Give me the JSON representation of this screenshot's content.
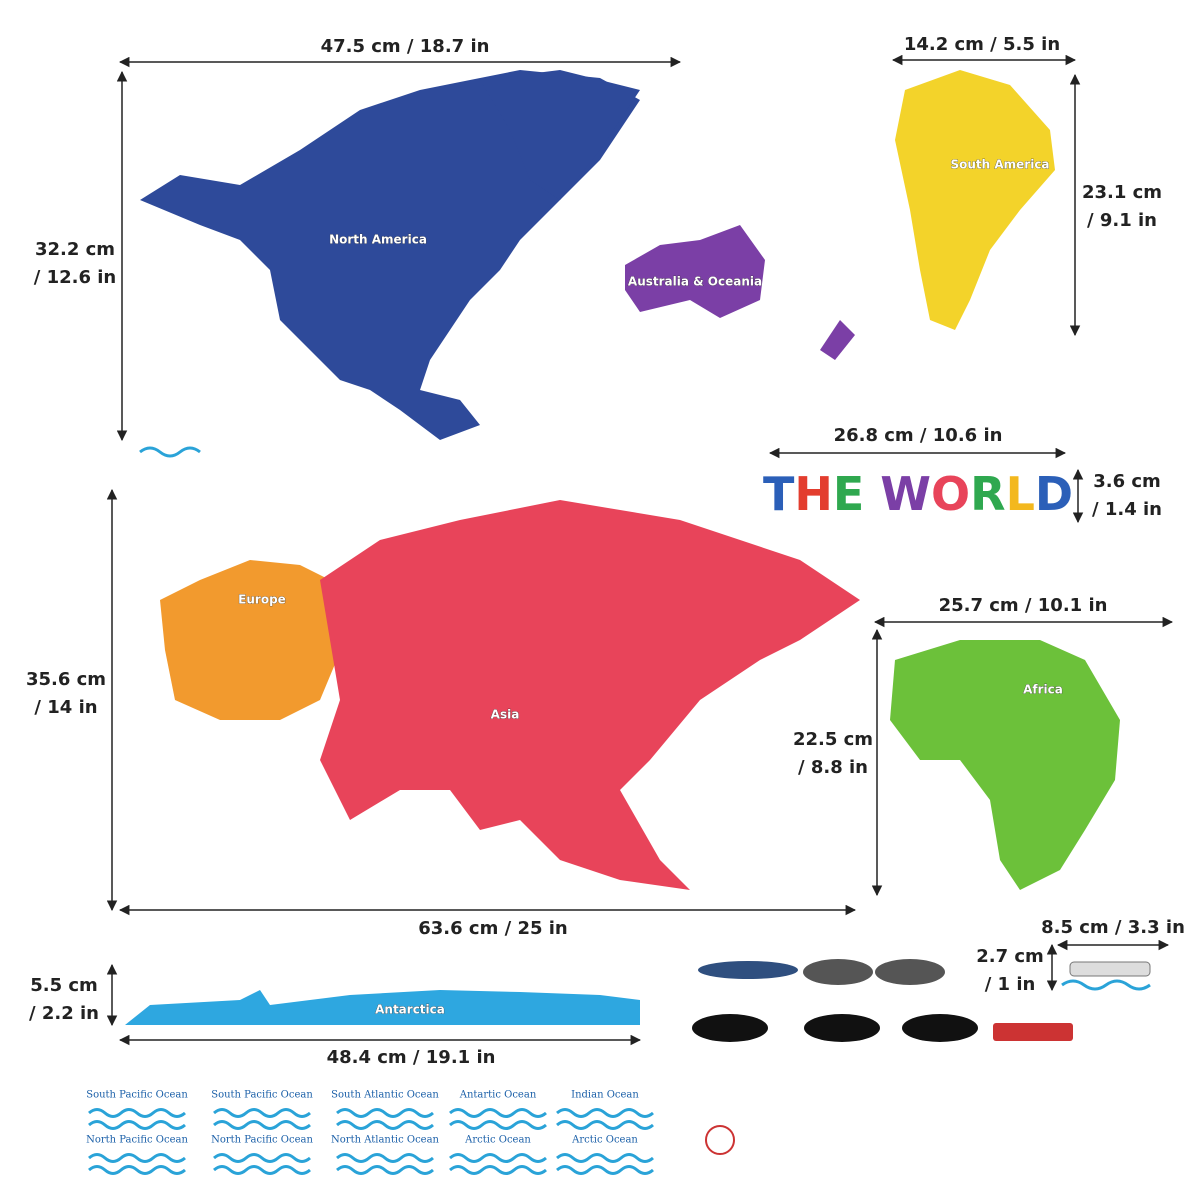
{
  "title": "THE WORLD",
  "dimensions": [
    [
      "47.5 cm / 18.7 in"
    ],
    [
      "32.2 cm",
      "/ 12.6 in"
    ],
    [
      "14.2 cm / 5.5 in"
    ],
    [
      "23.1 cm",
      "/ 9.1 in"
    ],
    [
      "26.8 cm / 10.6 in"
    ],
    [
      "3.6 cm",
      "/ 1.4 in"
    ],
    [
      "35.6 cm",
      "/ 14 in"
    ],
    [
      "63.6 cm / 25 in"
    ],
    [
      "25.7 cm / 10.1 in"
    ],
    [
      "22.5 cm",
      "/ 8.8 in"
    ],
    [
      "8.5 cm / 3.3 in"
    ],
    [
      "2.7 cm",
      "/ 1 in"
    ],
    [
      "5.5 cm",
      "/ 2.2 in"
    ],
    [
      "48.4 cm / 19.1 in"
    ]
  ],
  "continents": [
    "North America",
    "Australia & Oceania",
    "South America",
    "Europe",
    "Asia",
    "Africa",
    "Antarctica"
  ],
  "oceans": [
    [
      "South Pacific Ocean",
      "South Pacific Ocean",
      "South Atlantic Ocean",
      "Antartic Ocean",
      "Indian Ocean"
    ],
    [
      "North Pacific Ocean",
      "North Pacific Ocean",
      "North Atlantic Ocean",
      "Arctic Ocean",
      "Arctic Ocean"
    ]
  ]
}
